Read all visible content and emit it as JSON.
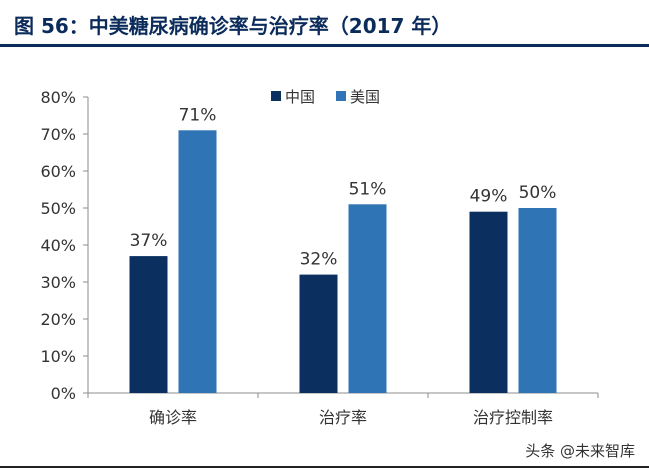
{
  "figure": {
    "title": "图 56：中美糖尿病确诊率与治疗率（2017 年）"
  },
  "watermark": "头条 @未来智库",
  "chart_data": {
    "type": "bar",
    "title": "",
    "xlabel": "",
    "ylabel": "",
    "categories": [
      "确诊率",
      "治疗率",
      "治疗控制率"
    ],
    "series": [
      {
        "name": "中国",
        "values": [
          37,
          32,
          49
        ],
        "color": "#0b2f5e"
      },
      {
        "name": "美国",
        "values": [
          71,
          51,
          50
        ],
        "color": "#2f75b5"
      }
    ],
    "ylim": [
      0,
      80
    ],
    "yticks": [
      0,
      10,
      20,
      30,
      40,
      50,
      60,
      70,
      80
    ],
    "tick_format": "percent",
    "data_labels": true,
    "grid": false,
    "legend_position": "top"
  }
}
